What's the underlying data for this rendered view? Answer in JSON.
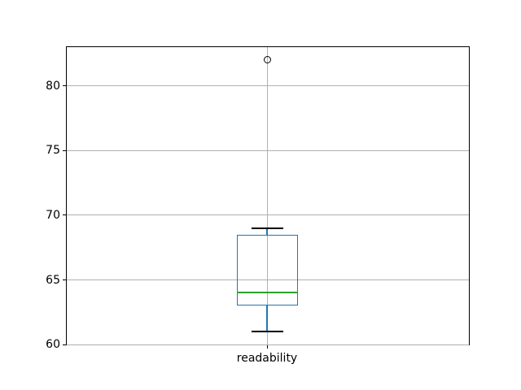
{
  "chart_data": {
    "type": "boxplot",
    "title": "",
    "xlabel": "",
    "ylabel": "",
    "categories": [
      "readability"
    ],
    "series": [
      {
        "name": "readability",
        "whisker_low": 61,
        "q1": 63,
        "median": 64,
        "q3": 68.5,
        "whisker_high": 69,
        "outliers": [
          82
        ]
      }
    ],
    "yticks": [
      60,
      65,
      70,
      75,
      80
    ],
    "ylim": [
      59.95,
      83.05
    ],
    "grid": true,
    "legend": "none",
    "colors": {
      "box": "#1f77b4",
      "whisker": "#1f77b4",
      "median": "#2ca02c",
      "cap": "#000000",
      "flier": "#000000",
      "grid": "#b0b0b0",
      "spine": "#000000",
      "background": "#ffffff"
    }
  }
}
